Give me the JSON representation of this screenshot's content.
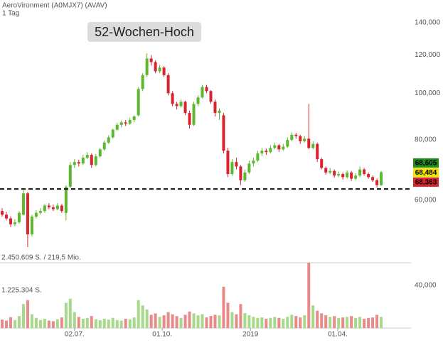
{
  "chart_data": {
    "type": "candlestick",
    "title": "AeroVironment (A0MJX7) (AVAV)",
    "subtitle": "1 Tag",
    "annotation": "52-Wochen-Hoch",
    "reference_line": 63300,
    "log_scale": true,
    "ylim": [
      47650,
      156000
    ],
    "yticks": [
      {
        "value": 60000,
        "label": "60,000"
      },
      {
        "value": 80000,
        "label": "80,000"
      },
      {
        "value": 100000,
        "label": "100,000"
      },
      {
        "value": 120000,
        "label": "120,000"
      },
      {
        "value": 140000,
        "label": "140,000"
      }
    ],
    "xlim": [
      -0.5,
      96
    ],
    "xticks": [
      {
        "value": 17,
        "label": "02.07."
      },
      {
        "value": 37.6,
        "label": "01.10."
      },
      {
        "value": 58.3,
        "label": "2019"
      },
      {
        "value": 78.8,
        "label": "01.04."
      }
    ],
    "up_color": "#5cb82e",
    "down_color": "#d9232e",
    "candles": [
      [
        57000,
        57800,
        55500,
        56000
      ],
      [
        56000,
        56800,
        54500,
        55000
      ],
      [
        55000,
        55600,
        52800,
        53500
      ],
      [
        53500,
        54800,
        53000,
        54000
      ],
      [
        54000,
        57000,
        53600,
        56500
      ],
      [
        56000,
        63000,
        55800,
        62000
      ],
      [
        62000,
        62500,
        48000,
        51000
      ],
      [
        51000,
        56000,
        50500,
        55500
      ],
      [
        55500,
        57200,
        55000,
        56500
      ],
      [
        56500,
        57800,
        56000,
        57000
      ],
      [
        57000,
        59000,
        56500,
        58500
      ],
      [
        58500,
        59200,
        57500,
        58000
      ],
      [
        58000,
        58800,
        57000,
        57500
      ],
      [
        57500,
        59200,
        57200,
        58500
      ],
      [
        58500,
        59000,
        56500,
        57000
      ],
      [
        56500,
        64500,
        54500,
        64000
      ],
      [
        64000,
        72000,
        63500,
        71000
      ],
      [
        71000,
        73000,
        70000,
        72000
      ],
      [
        72000,
        72800,
        70500,
        71500
      ],
      [
        71500,
        74500,
        71000,
        73500
      ],
      [
        73500,
        75500,
        73000,
        74500
      ],
      [
        74500,
        75000,
        70000,
        71000
      ],
      [
        71000,
        74800,
        70500,
        74000
      ],
      [
        74000,
        77000,
        73500,
        76500
      ],
      [
        76500,
        79800,
        76000,
        79000
      ],
      [
        79000,
        81800,
        78500,
        81000
      ],
      [
        81000,
        84500,
        80500,
        84000
      ],
      [
        84000,
        86800,
        83500,
        86000
      ],
      [
        86000,
        87800,
        85000,
        87000
      ],
      [
        87000,
        88000,
        85500,
        86500
      ],
      [
        86500,
        88800,
        86000,
        88000
      ],
      [
        88000,
        90000,
        87000,
        89500
      ],
      [
        90000,
        103000,
        89500,
        102000
      ],
      [
        102000,
        110000,
        101000,
        109000
      ],
      [
        109000,
        121000,
        108000,
        118000
      ],
      [
        118000,
        120000,
        114000,
        116000
      ],
      [
        116000,
        117000,
        110000,
        111000
      ],
      [
        111000,
        114500,
        110000,
        113000
      ],
      [
        113000,
        113800,
        108000,
        109000
      ],
      [
        109000,
        110000,
        99000,
        100000
      ],
      [
        100000,
        101000,
        94000,
        95000
      ],
      [
        95000,
        96000,
        92500,
        94000
      ],
      [
        94000,
        97000,
        93500,
        96000
      ],
      [
        96000,
        96500,
        90000,
        91000
      ],
      [
        91000,
        92000,
        84500,
        86000
      ],
      [
        86000,
        96000,
        85500,
        95000
      ],
      [
        95000,
        99000,
        94000,
        98000
      ],
      [
        98000,
        104000,
        97500,
        103000
      ],
      [
        103000,
        104000,
        100000,
        101000
      ],
      [
        101000,
        101500,
        95000,
        96000
      ],
      [
        96000,
        97000,
        89500,
        91000
      ],
      [
        91000,
        93000,
        88000,
        92000
      ],
      [
        90000,
        91000,
        75000,
        76000
      ],
      [
        76000,
        77000,
        67000,
        68000
      ],
      [
        68000,
        73000,
        67500,
        72000
      ],
      [
        72000,
        73500,
        69500,
        70500
      ],
      [
        70500,
        71000,
        64500,
        66000
      ],
      [
        66000,
        69500,
        65500,
        68500
      ],
      [
        68500,
        72500,
        68000,
        71500
      ],
      [
        71500,
        73500,
        70500,
        72500
      ],
      [
        72500,
        76000,
        72000,
        75000
      ],
      [
        75000,
        77000,
        74000,
        76000
      ],
      [
        76000,
        76800,
        74500,
        75500
      ],
      [
        75500,
        78000,
        75000,
        77000
      ],
      [
        77000,
        79000,
        76500,
        78000
      ],
      [
        78000,
        78500,
        75500,
        76500
      ],
      [
        76500,
        78500,
        76000,
        77500
      ],
      [
        77500,
        81000,
        77000,
        80000
      ],
      [
        80000,
        83000,
        79500,
        82000
      ],
      [
        82000,
        82800,
        80500,
        81500
      ],
      [
        81500,
        82000,
        78500,
        79500
      ],
      [
        79500,
        81500,
        79000,
        80500
      ],
      [
        80500,
        95000,
        76500,
        77000
      ],
      [
        77000,
        79500,
        76500,
        78500
      ],
      [
        78500,
        79000,
        72000,
        73000
      ],
      [
        73000,
        73500,
        69500,
        70000
      ],
      [
        70000,
        70500,
        67800,
        68500
      ],
      [
        68500,
        70000,
        68000,
        69000
      ],
      [
        69000,
        69500,
        66800,
        67500
      ],
      [
        67500,
        68800,
        67000,
        68000
      ],
      [
        68000,
        68500,
        66200,
        67000
      ],
      [
        67000,
        69200,
        66500,
        68500
      ],
      [
        68500,
        69000,
        65800,
        66500
      ],
      [
        66500,
        68200,
        66000,
        67500
      ],
      [
        67500,
        70500,
        67000,
        69500
      ],
      [
        69500,
        70000,
        67500,
        68000
      ],
      [
        68000,
        68500,
        66500,
        67000
      ],
      [
        67000,
        67500,
        65500,
        66000
      ],
      [
        66000,
        66500,
        63800,
        64500
      ],
      [
        64500,
        69000,
        64200,
        68605
      ]
    ],
    "price_labels": [
      {
        "value": 68605,
        "label": "68,605",
        "color": "#1f8a1f"
      },
      {
        "value": 68484,
        "label": "68,484",
        "color": "#f2e600"
      },
      {
        "value": 68363,
        "label": "68,363",
        "color": "#d9232e"
      }
    ],
    "volume": [
      320000,
      280000,
      410000,
      300000,
      450000,
      900000,
      1050000,
      520000,
      380000,
      300000,
      350000,
      280000,
      260000,
      330000,
      400000,
      950000,
      1100000,
      600000,
      420000,
      350000,
      380000,
      450000,
      330000,
      300000,
      350000,
      320000,
      380000,
      300000,
      280000,
      350000,
      330000,
      400000,
      1050000,
      850000,
      700000,
      500000,
      550000,
      420000,
      480000,
      600000,
      520000,
      450000,
      380000,
      500000,
      620000,
      550000,
      480000,
      520000,
      400000,
      450000,
      500000,
      480000,
      1550000,
      950000,
      600000,
      520000,
      900000,
      560000,
      480000,
      420000,
      380000,
      400000,
      350000,
      380000,
      420000,
      380000,
      350000,
      420000,
      500000,
      450000,
      400000,
      480000,
      2450609,
      850000,
      650000,
      550000,
      480000,
      420000,
      450000,
      380000,
      400000,
      420000,
      450000,
      380000,
      420000,
      350000,
      380000,
      400000,
      500000,
      420000
    ],
    "volume_ylim": [
      0,
      2450609
    ],
    "volume_ticks": [
      {
        "value": 2450609,
        "label": "2.450.609 S. / 219,5 Mio."
      },
      {
        "value": 1225304,
        "label": "1.225.304 S."
      }
    ],
    "volume_up_color": "#a6d98a",
    "volume_down_color": "#e88a8a",
    "volume_axis_text": "40,000"
  }
}
